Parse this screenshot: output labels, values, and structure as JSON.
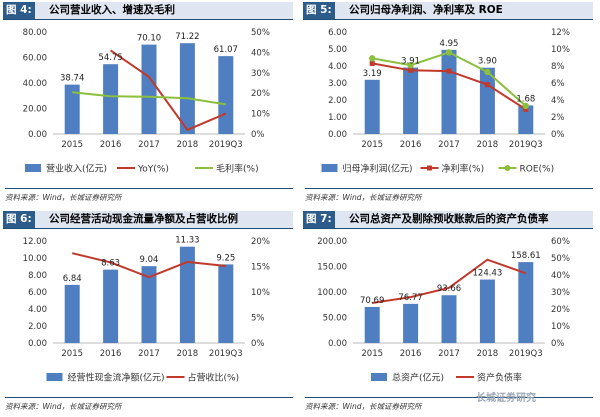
{
  "colors": {
    "bar": "#4f7fc0",
    "red": "#c0392b",
    "green": "#8bbf3d",
    "orange": "#e0a63c",
    "header_bg": "#dfe6f1",
    "fig_bg": "#2e5c8a"
  },
  "watermark": "长城证券研究",
  "chart_data": [
    {
      "type": "bar",
      "fig_label": "图 4:",
      "title": "公司营业收入、增速及毛利",
      "source": "资料来源：Wind，长城证券研究所",
      "categories": [
        "2015",
        "2016",
        "2017",
        "2018",
        "2019Q3"
      ],
      "y_left": {
        "min": 0,
        "max": 80,
        "ticks": [
          "0.00",
          "20.00",
          "40.00",
          "60.00",
          "80.00"
        ]
      },
      "y_right": {
        "min": 0,
        "max": 50,
        "ticks": [
          "0%",
          "10%",
          "20%",
          "30%",
          "40%",
          "50%"
        ]
      },
      "bars": {
        "name": "营业收入(亿元)",
        "values": [
          38.74,
          54.75,
          70.1,
          71.22,
          61.07
        ],
        "labels": [
          "38.74",
          "54.75",
          "70.10",
          "71.22",
          "61.07"
        ]
      },
      "lines": [
        {
          "name": "YoY(%)",
          "color": "#c0392b",
          "marker": "none",
          "values": [
            null,
            41,
            28,
            2,
            10
          ]
        },
        {
          "name": "毛利率(%)",
          "color": "#8bbf3d",
          "marker": "none",
          "values": [
            20.5,
            18.5,
            18.3,
            17.5,
            14.5
          ]
        }
      ]
    },
    {
      "type": "bar",
      "fig_label": "图 5:",
      "title": "公司归母净利润、净利率及 ROE",
      "source": "资料来源：Wind，长城证券研究所",
      "categories": [
        "2015",
        "2016",
        "2017",
        "2018",
        "2019Q3"
      ],
      "y_left": {
        "min": 0,
        "max": 6,
        "ticks": [
          "0.00",
          "1.00",
          "2.00",
          "3.00",
          "4.00",
          "5.00",
          "6.00"
        ]
      },
      "y_right": {
        "min": 0,
        "max": 12,
        "ticks": [
          "0%",
          "2%",
          "4%",
          "6%",
          "8%",
          "10%",
          "12%"
        ]
      },
      "bars": {
        "name": "归母净利润(亿元)",
        "values": [
          3.19,
          3.91,
          4.95,
          3.9,
          1.68
        ],
        "labels": [
          "3.19",
          "3.91",
          "4.95",
          "3.90",
          "1.68"
        ]
      },
      "lines": [
        {
          "name": "净利率(%)",
          "color": "#c0392b",
          "marker": "square",
          "values": [
            8.3,
            7.5,
            7.4,
            5.8,
            2.9
          ]
        },
        {
          "name": "ROE(%)",
          "color": "#8bbf3d",
          "marker": "circle",
          "values": [
            8.9,
            8.1,
            9.6,
            7.3,
            3.3
          ]
        }
      ]
    },
    {
      "type": "bar",
      "fig_label": "图 6:",
      "title": "公司经营活动现金流量净额及占营收比例",
      "source": "资料来源：Wind，长城证券研究所",
      "categories": [
        "2015",
        "2016",
        "2017",
        "2018",
        "2019Q3"
      ],
      "y_left": {
        "min": 0,
        "max": 12,
        "ticks": [
          "0.00",
          "2.00",
          "4.00",
          "6.00",
          "8.00",
          "10.00",
          "12.00"
        ]
      },
      "y_right": {
        "min": 0,
        "max": 20,
        "ticks": [
          "0%",
          "5%",
          "10%",
          "15%",
          "20%"
        ]
      },
      "bars": {
        "name": "经营性现金流净额(亿元)",
        "values": [
          6.84,
          8.63,
          9.04,
          11.33,
          9.25
        ],
        "labels": [
          "6.84",
          "8.63",
          "9.04",
          "11.33",
          "9.25"
        ]
      },
      "lines": [
        {
          "name": "占营收比(%)",
          "color": "#c0392b",
          "marker": "none",
          "values": [
            17.6,
            15.8,
            12.9,
            15.9,
            15.1
          ]
        }
      ]
    },
    {
      "type": "bar",
      "fig_label": "图 7:",
      "title": "公司总资产及剔除预收账款后的资产负债率",
      "source": "资料来源：Wind，长城证券研究所",
      "categories": [
        "2015",
        "2016",
        "2017",
        "2018",
        "2019Q3"
      ],
      "y_left": {
        "min": 0,
        "max": 200,
        "ticks": [
          "0.00",
          "50.00",
          "100.00",
          "150.00",
          "200.00"
        ]
      },
      "y_right": {
        "min": 0,
        "max": 60,
        "ticks": [
          "0%",
          "10%",
          "20%",
          "30%",
          "40%",
          "50%",
          "60%"
        ]
      },
      "bars": {
        "name": "总资产(亿元)",
        "values": [
          70.69,
          76.77,
          93.66,
          124.43,
          158.61
        ],
        "labels": [
          "70.69",
          "76.77",
          "93.66",
          "124.43",
          "158.61"
        ]
      },
      "lines": [
        {
          "name": "资产负债率",
          "color": "#c0392b",
          "marker": "none",
          "values": [
            23.5,
            27,
            32.5,
            49,
            41
          ]
        }
      ]
    }
  ]
}
